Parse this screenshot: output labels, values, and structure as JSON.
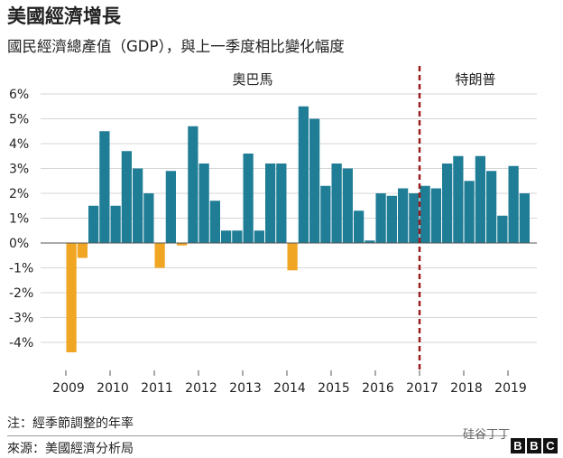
{
  "header": {
    "title": "美國經濟增長",
    "subtitle": "國民經濟總產值（GDP），與上一季度相比變化幅度"
  },
  "footer": {
    "note": "注：經季節調整的年率",
    "source": "來源：美國經濟分析局",
    "watermark": "硅谷丁丁",
    "brand_letters": [
      "B",
      "B",
      "C"
    ]
  },
  "colors": {
    "positive": "#1f7d96",
    "negative": "#f0a623",
    "divider": "#9b1c1c",
    "grid": "#d6d6d6"
  },
  "chart_data": {
    "type": "bar",
    "title": "美國經濟增長",
    "subtitle": "國民經濟總產值（GDP），與上一季度相比變化幅度",
    "ylabel": "",
    "xlabel": "",
    "ylim": [
      -4.5,
      6
    ],
    "yticks": [
      6,
      5,
      4,
      3,
      2,
      1,
      0,
      -1,
      -2,
      -3,
      -4
    ],
    "ytick_labels": [
      "6%",
      "5%",
      "4%",
      "3%",
      "2%",
      "1%",
      "0%",
      "-1%",
      "-2%",
      "-3%",
      "-4%"
    ],
    "grid": true,
    "xtick_labels": [
      "2009",
      "2010",
      "2011",
      "2012",
      "2013",
      "2014",
      "2015",
      "2016",
      "2017",
      "2018",
      "2019"
    ],
    "first_year": 2009,
    "values": [
      -4.4,
      -0.6,
      1.5,
      4.5,
      1.5,
      3.7,
      3.0,
      2.0,
      -1.0,
      2.9,
      -0.1,
      4.7,
      3.2,
      1.7,
      0.5,
      0.5,
      3.6,
      0.5,
      3.2,
      3.2,
      -1.1,
      5.5,
      5.0,
      2.3,
      3.2,
      3.0,
      1.3,
      0.1,
      2.0,
      1.9,
      2.2,
      2.0,
      2.3,
      2.2,
      3.2,
      3.5,
      2.5,
      3.5,
      2.9,
      1.1,
      3.1,
      2.0
    ],
    "eras": [
      {
        "label": "奧巴馬"
      },
      {
        "label": "特朗普"
      }
    ],
    "divider_at": 2017
  }
}
